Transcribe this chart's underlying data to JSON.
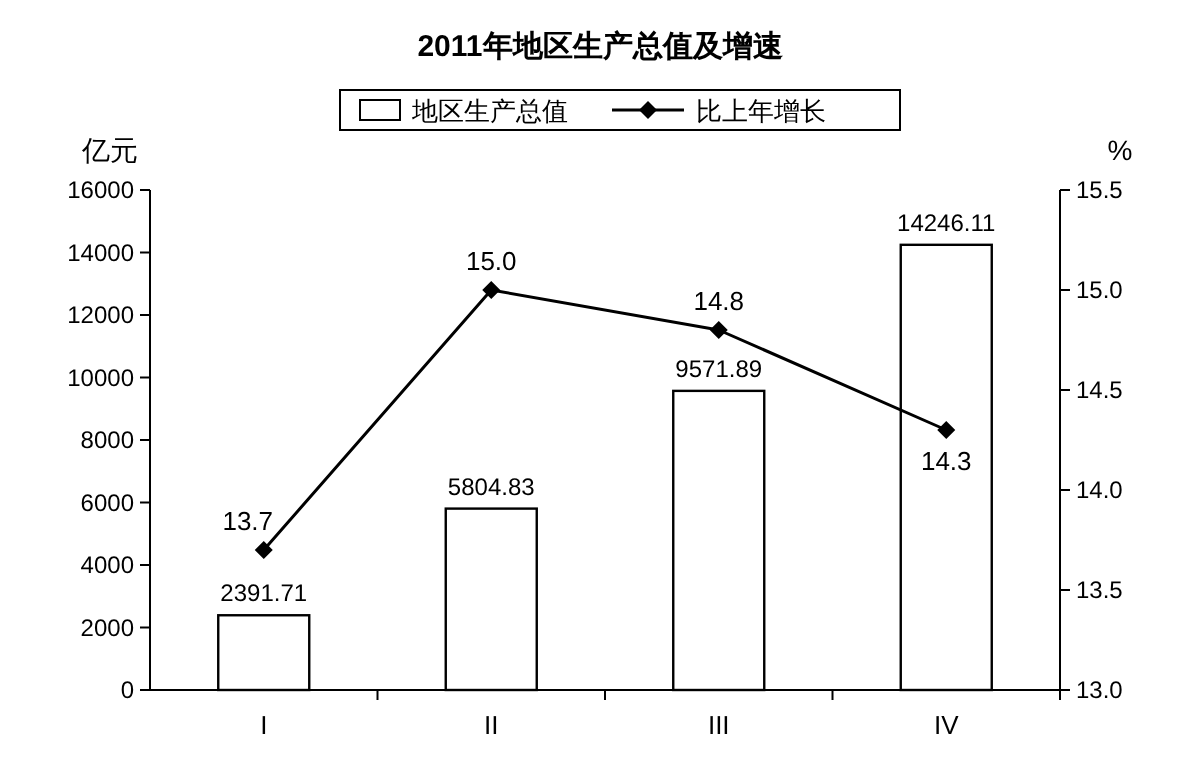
{
  "chart_data": {
    "type": "bar",
    "title": "2011年地区生产总值及增速",
    "ylabel": "亿元",
    "y2label": "%",
    "categories": [
      "I",
      "II",
      "III",
      "IV"
    ],
    "series": [
      {
        "name": "地区生产总值",
        "color": "#ffffff",
        "values": [
          2391.71,
          5804.83,
          9571.89,
          14246.11
        ]
      },
      {
        "name": "比上年增长",
        "type": "line",
        "axis": "y2",
        "color": "#000000",
        "marker": "diamond",
        "values": [
          13.7,
          15.0,
          14.8,
          14.3
        ]
      }
    ],
    "ylim": [
      0,
      16000
    ],
    "yticks": [
      0,
      2000,
      4000,
      6000,
      8000,
      10000,
      12000,
      14000,
      16000
    ],
    "y2lim": [
      13,
      15.5
    ],
    "y2ticks": [
      {
        "value": 13,
        "label": "13.0"
      },
      {
        "value": 13.5,
        "label": "13.5"
      },
      {
        "value": 14,
        "label": "14.0"
      },
      {
        "value": 14.5,
        "label": "14.5"
      },
      {
        "value": 15,
        "label": "15.0"
      },
      {
        "value": 15.5,
        "label": "15.5"
      }
    ],
    "value_labels": [
      [
        "2391.71",
        "5804.83",
        "9571.89",
        "14246.11"
      ],
      [
        "13.7",
        "15.0",
        "14.8",
        "14.3"
      ]
    ],
    "legend": "top",
    "grid": false
  }
}
